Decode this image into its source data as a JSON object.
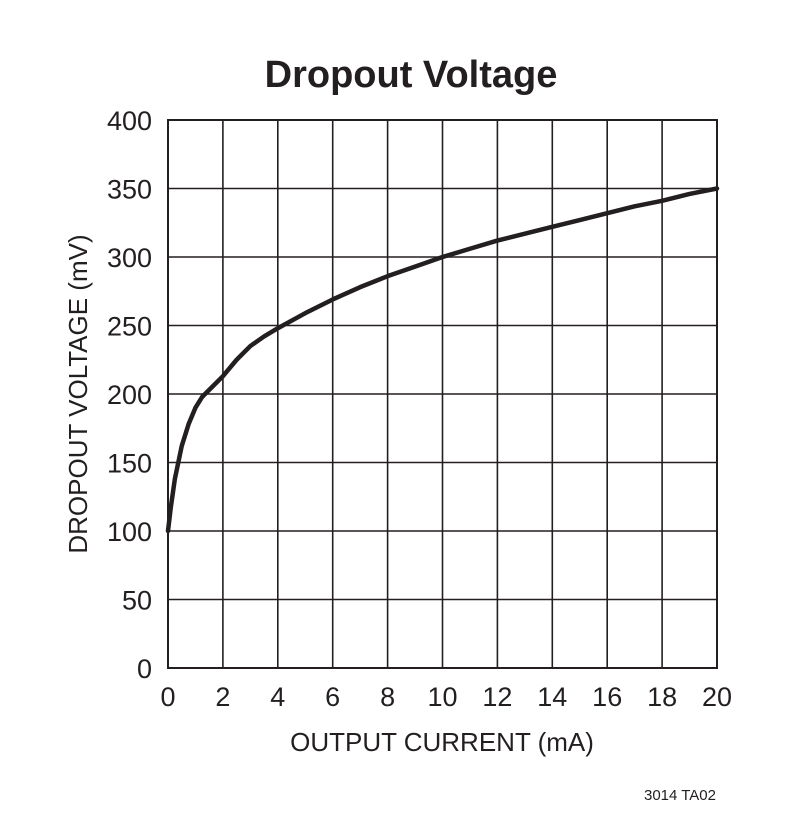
{
  "chart_data": {
    "type": "line",
    "title": "Dropout Voltage",
    "xlabel": "OUTPUT CURRENT (mA)",
    "ylabel": "DROPOUT VOLTAGE (mV)",
    "xlim": [
      0,
      20
    ],
    "ylim": [
      0,
      400
    ],
    "x_ticks": [
      "0",
      "2",
      "4",
      "6",
      "8",
      "10",
      "12",
      "14",
      "16",
      "18",
      "20"
    ],
    "y_ticks": [
      "0",
      "50",
      "100",
      "150",
      "200",
      "250",
      "300",
      "350",
      "400"
    ],
    "grid": true,
    "series": [
      {
        "x": [
          0,
          0.1,
          0.25,
          0.5,
          0.75,
          1,
          1.25,
          1.5,
          2,
          2.5,
          3,
          3.5,
          4,
          5,
          6,
          7,
          8,
          9,
          10,
          11,
          12,
          13,
          14,
          15,
          16,
          17,
          18,
          19,
          20
        ],
        "y": [
          100,
          117,
          138,
          162,
          178,
          190,
          198,
          203,
          213,
          225,
          235,
          242,
          248,
          259,
          269,
          278,
          286,
          293,
          300,
          306,
          312,
          317,
          322,
          327,
          332,
          337,
          341,
          346,
          350
        ]
      }
    ]
  },
  "figure_id": "3014 TA02"
}
